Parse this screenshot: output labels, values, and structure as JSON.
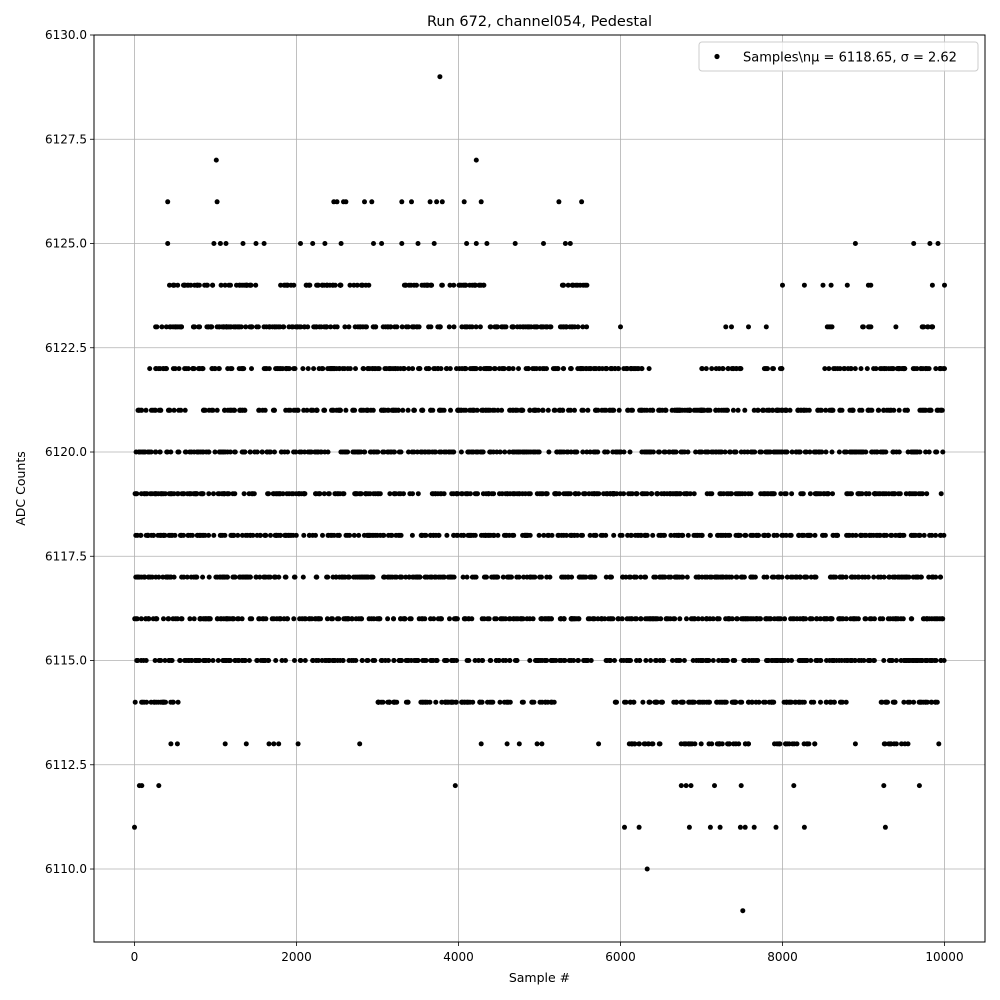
{
  "chart_data": {
    "type": "scatter",
    "title": "Run 672, channel054, Pedestal",
    "xlabel": "Sample #",
    "ylabel": "ADC Counts",
    "xlim": [
      -500,
      10500
    ],
    "ylim": [
      6108.25,
      6130.0
    ],
    "x_ticks": [
      0,
      2000,
      4000,
      6000,
      8000,
      10000
    ],
    "y_ticks": [
      6110.0,
      6112.5,
      6115.0,
      6117.5,
      6120.0,
      6122.5,
      6125.0,
      6127.5,
      6130.0
    ],
    "x_tick_labels": [
      "0",
      "2000",
      "4000",
      "6000",
      "8000",
      "10000"
    ],
    "y_tick_labels": [
      "6110.0",
      "6112.5",
      "6115.0",
      "6117.5",
      "6120.0",
      "6122.5",
      "6125.0",
      "6127.5",
      "6130.0"
    ],
    "grid": true,
    "legend_position": "top-right",
    "marker_color": "#000000",
    "series": [
      {
        "name": "Samples\\n$\\mu$ = 6118.65, $\\sigma$ = 2.62",
        "legend_display": "Samples\\nμ = 6118.65, σ = 2.62",
        "levels": [
          {
            "y": 6121,
            "x_ranges": [
              [
                0,
                10000
              ]
            ]
          },
          {
            "y": 6120,
            "x_ranges": [
              [
                0,
                10000
              ]
            ]
          },
          {
            "y": 6119,
            "x_ranges": [
              [
                0,
                10000
              ]
            ]
          },
          {
            "y": 6118,
            "x_ranges": [
              [
                0,
                10000
              ]
            ]
          },
          {
            "y": 6117,
            "x_ranges": [
              [
                0,
                10000
              ]
            ]
          },
          {
            "y": 6116,
            "x_ranges": [
              [
                0,
                10000
              ]
            ]
          },
          {
            "y": 6115,
            "x_ranges": [
              [
                0,
                10000
              ]
            ]
          },
          {
            "y": 6122,
            "x_ranges": [
              [
                160,
                6400
              ],
              [
                7000,
                7500
              ],
              [
                7750,
                8000
              ],
              [
                8450,
                10000
              ]
            ]
          },
          {
            "y": 6114,
            "x_ranges": [
              [
                0,
                600
              ],
              [
                3000,
                5200
              ],
              [
                5900,
                8800
              ],
              [
                9200,
                9950
              ]
            ]
          },
          {
            "y": 6123,
            "x_ranges": [
              [
                250,
                5600
              ],
              [
                8550,
                8650
              ],
              [
                8950,
                9100
              ],
              [
                9700,
                9950
              ]
            ]
          },
          {
            "y": 6124,
            "x_ranges": [
              [
                400,
                1500
              ],
              [
                1800,
                2900
              ],
              [
                3300,
                4350
              ],
              [
                5250,
                5600
              ]
            ]
          },
          {
            "y": 6113,
            "x_ranges": [
              [
                6050,
                6500
              ],
              [
                6700,
                7600
              ],
              [
                7900,
                8400
              ],
              [
                9250,
                9550
              ]
            ]
          }
        ],
        "scattered_points": [
          [
            0,
            6111
          ],
          [
            60,
            6112
          ],
          [
            90,
            6112
          ],
          [
            300,
            6112
          ],
          [
            3960,
            6112
          ],
          [
            6750,
            6112
          ],
          [
            6810,
            6112
          ],
          [
            6870,
            6112
          ],
          [
            7160,
            6112
          ],
          [
            7490,
            6112
          ],
          [
            8140,
            6112
          ],
          [
            9250,
            6112
          ],
          [
            9690,
            6112
          ],
          [
            6050,
            6111
          ],
          [
            6230,
            6111
          ],
          [
            6850,
            6111
          ],
          [
            7110,
            6111
          ],
          [
            7230,
            6111
          ],
          [
            7480,
            6111
          ],
          [
            7540,
            6111
          ],
          [
            7650,
            6111
          ],
          [
            7920,
            6111
          ],
          [
            8270,
            6111
          ],
          [
            9270,
            6111
          ],
          [
            6330,
            6110
          ],
          [
            7510,
            6109
          ],
          [
            3770,
            6129
          ],
          [
            1010,
            6127
          ],
          [
            4220,
            6127
          ],
          [
            410,
            6126
          ],
          [
            1020,
            6126
          ],
          [
            2460,
            6126
          ],
          [
            2500,
            6126
          ],
          [
            2580,
            6126
          ],
          [
            2610,
            6126
          ],
          [
            2840,
            6126
          ],
          [
            2930,
            6126
          ],
          [
            3300,
            6126
          ],
          [
            3420,
            6126
          ],
          [
            3650,
            6126
          ],
          [
            3730,
            6126
          ],
          [
            3800,
            6126
          ],
          [
            4070,
            6126
          ],
          [
            4280,
            6126
          ],
          [
            5240,
            6126
          ],
          [
            5520,
            6126
          ],
          [
            410,
            6125
          ],
          [
            980,
            6125
          ],
          [
            1060,
            6125
          ],
          [
            1130,
            6125
          ],
          [
            1340,
            6125
          ],
          [
            1500,
            6125
          ],
          [
            1600,
            6125
          ],
          [
            2050,
            6125
          ],
          [
            2200,
            6125
          ],
          [
            2350,
            6125
          ],
          [
            2550,
            6125
          ],
          [
            2950,
            6125
          ],
          [
            3050,
            6125
          ],
          [
            3300,
            6125
          ],
          [
            3500,
            6125
          ],
          [
            3700,
            6125
          ],
          [
            4100,
            6125
          ],
          [
            4220,
            6125
          ],
          [
            4350,
            6125
          ],
          [
            4700,
            6125
          ],
          [
            5050,
            6125
          ],
          [
            5320,
            6125
          ],
          [
            5380,
            6125
          ],
          [
            8900,
            6125
          ],
          [
            9620,
            6125
          ],
          [
            9820,
            6125
          ],
          [
            9920,
            6125
          ],
          [
            8000,
            6124
          ],
          [
            8270,
            6124
          ],
          [
            8500,
            6124
          ],
          [
            8600,
            6124
          ],
          [
            8800,
            6124
          ],
          [
            9060,
            6124
          ],
          [
            9090,
            6124
          ],
          [
            9850,
            6124
          ],
          [
            10000,
            6124
          ],
          [
            6000,
            6123
          ],
          [
            7300,
            6123
          ],
          [
            7370,
            6123
          ],
          [
            7580,
            6123
          ],
          [
            7800,
            6123
          ],
          [
            9400,
            6123
          ],
          [
            1120,
            6113
          ],
          [
            1380,
            6113
          ],
          [
            1660,
            6113
          ],
          [
            1720,
            6113
          ],
          [
            1780,
            6113
          ],
          [
            2020,
            6113
          ],
          [
            2780,
            6113
          ],
          [
            4280,
            6113
          ],
          [
            4600,
            6113
          ],
          [
            4750,
            6113
          ],
          [
            4970,
            6113
          ],
          [
            5030,
            6113
          ],
          [
            5730,
            6113
          ],
          [
            8900,
            6113
          ],
          [
            9930,
            6113
          ],
          [
            450,
            6113
          ],
          [
            530,
            6113
          ]
        ]
      }
    ]
  }
}
